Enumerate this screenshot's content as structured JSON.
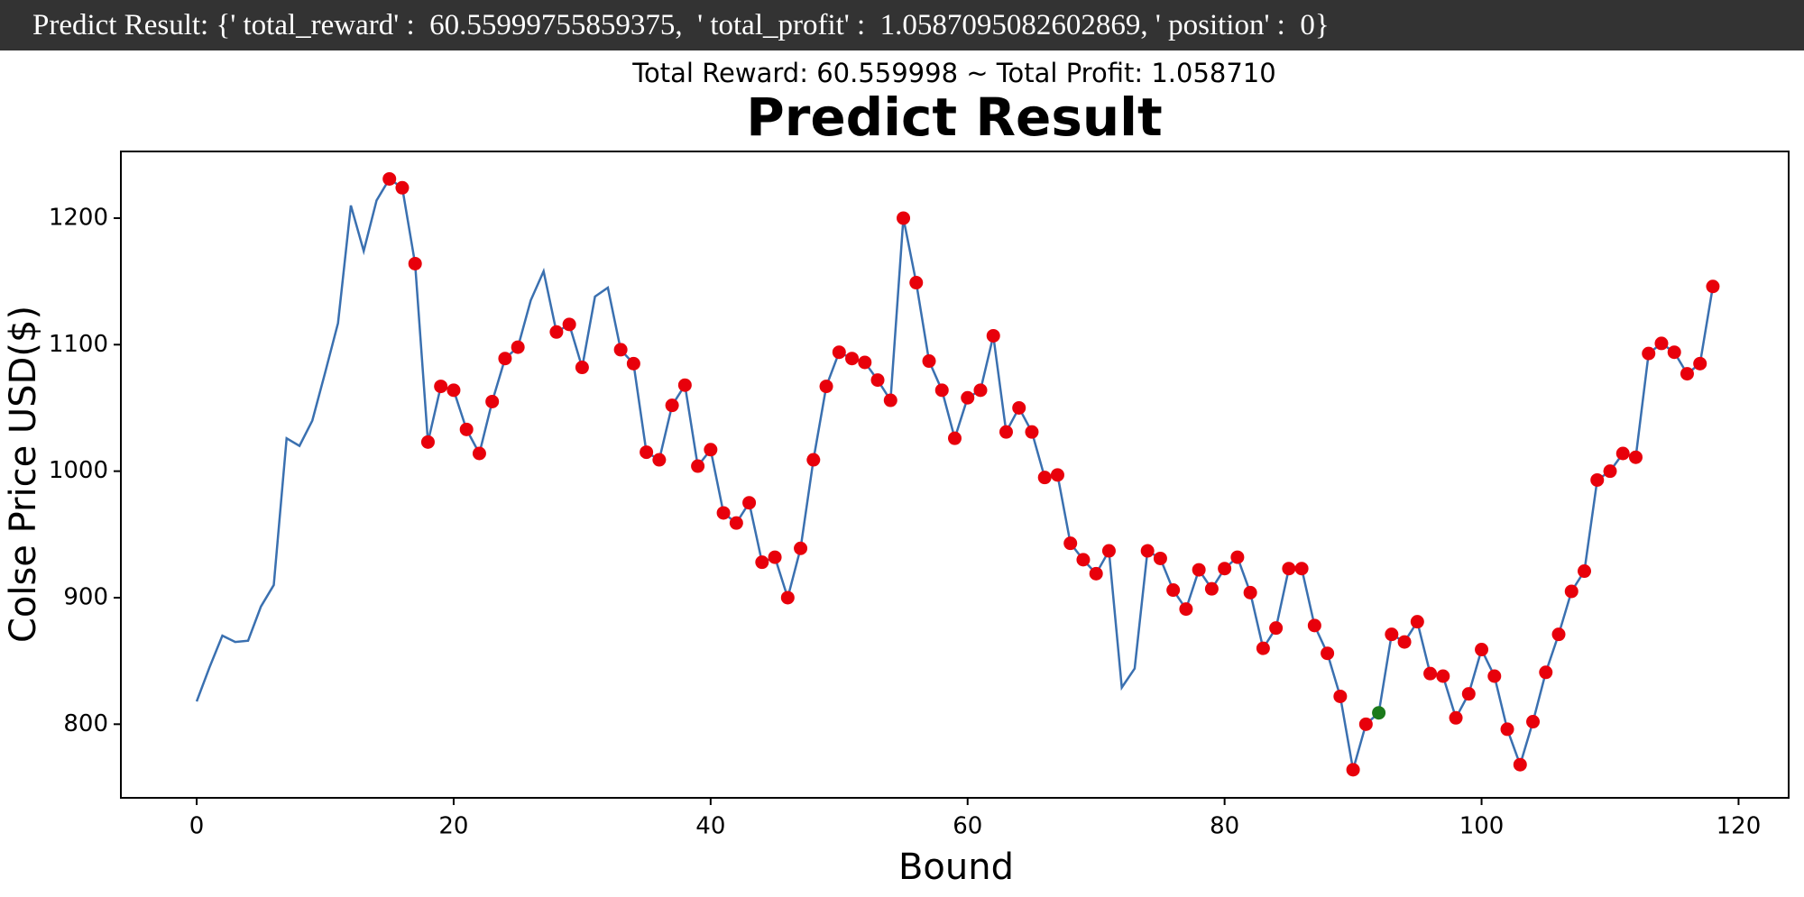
{
  "header": "Predict Result: {' total_reward' :  60.55999755859375,  ' total_profit' :  1.0587095082602869, ' position' :  0}",
  "chart_data": {
    "type": "line",
    "subtitle": "Total Reward: 60.559998 ~ Total Profit:  1.058710",
    "title": "Predict Result",
    "xlabel": "Bound",
    "ylabel": "Colse Price USD($)",
    "xlim": [
      -5.9,
      123.9
    ],
    "ylim": [
      741.8,
      1252.7
    ],
    "xticks": [
      0,
      20,
      40,
      60,
      80,
      100,
      120
    ],
    "yticks": [
      800,
      900,
      1000,
      1100,
      1200
    ],
    "series": [
      {
        "color": "#3a70b0",
        "x": [
          0,
          1,
          2,
          3,
          4,
          5,
          6,
          7,
          8,
          9,
          10,
          11,
          12,
          13,
          14,
          15,
          16,
          17,
          18,
          19,
          20,
          21,
          22,
          23,
          24,
          25,
          26,
          27,
          28,
          29,
          30,
          31,
          32,
          33,
          34,
          35,
          36,
          37,
          38,
          39,
          40,
          41,
          42,
          43,
          44,
          45,
          46,
          47,
          48,
          49,
          50,
          51,
          52,
          53,
          54,
          55,
          56,
          57,
          58,
          59,
          60,
          61,
          62,
          63,
          64,
          65,
          66,
          67,
          68,
          69,
          70,
          71,
          72,
          73,
          74,
          75,
          76,
          77,
          78,
          79,
          80,
          81,
          82,
          83,
          84,
          85,
          86,
          87,
          88,
          89,
          90,
          91,
          92,
          93,
          94,
          95,
          96,
          97,
          98,
          99,
          100,
          101,
          102,
          103,
          104,
          105,
          106,
          107,
          108,
          109,
          110,
          111,
          112,
          113,
          114,
          115,
          116,
          117,
          118
        ],
        "values": [
          818,
          845,
          870,
          865,
          866,
          893,
          910,
          1026,
          1020,
          1040,
          1078,
          1117,
          1210,
          1174,
          1214,
          1231,
          1224,
          1164,
          1023,
          1067,
          1064,
          1033,
          1014,
          1055,
          1089,
          1098,
          1135,
          1158,
          1110,
          1116,
          1082,
          1138,
          1145,
          1096,
          1085,
          1015,
          1009,
          1052,
          1068,
          1004,
          1017,
          967,
          959,
          975,
          928,
          932,
          900,
          939,
          1009,
          1067,
          1094,
          1089,
          1086,
          1072,
          1056,
          1200,
          1149,
          1087,
          1064,
          1026,
          1058,
          1064,
          1107,
          1031,
          1050,
          1031,
          995,
          997,
          943,
          930,
          919,
          937,
          829,
          844,
          937,
          931,
          906,
          891,
          922,
          907,
          923,
          932,
          904,
          860,
          876,
          923,
          923,
          878,
          856,
          822,
          764,
          800,
          809,
          871,
          865,
          881,
          840,
          838,
          805,
          824,
          859,
          838,
          796,
          768,
          802,
          841,
          871,
          905,
          921,
          993,
          1000,
          1014,
          1011,
          1093,
          1101,
          1094,
          1077,
          1085,
          1146
        ]
      }
    ],
    "markers": [
      {
        "color": "#e8000b",
        "x": [
          15,
          16,
          17,
          18,
          19,
          20,
          21,
          22,
          23,
          24,
          25,
          28,
          29,
          30,
          33,
          34,
          35,
          36,
          37,
          38,
          39,
          40,
          41,
          42,
          43,
          44,
          45,
          46,
          47,
          48,
          49,
          50,
          51,
          52,
          53,
          54,
          55,
          56,
          57,
          58,
          59,
          60,
          61,
          62,
          63,
          64,
          65,
          66,
          67,
          68,
          69,
          70,
          71,
          74,
          75,
          76,
          77,
          78,
          79,
          80,
          81,
          82,
          83,
          84,
          85,
          86,
          87,
          88,
          89,
          90,
          91,
          93,
          94,
          95,
          96,
          97,
          98,
          99,
          100,
          101,
          102,
          103,
          104,
          105,
          106,
          107,
          108,
          109,
          110,
          111,
          112,
          113,
          114,
          115,
          116,
          117,
          118
        ]
      },
      {
        "color": "#1b7a1b",
        "x": [
          92
        ]
      }
    ]
  }
}
